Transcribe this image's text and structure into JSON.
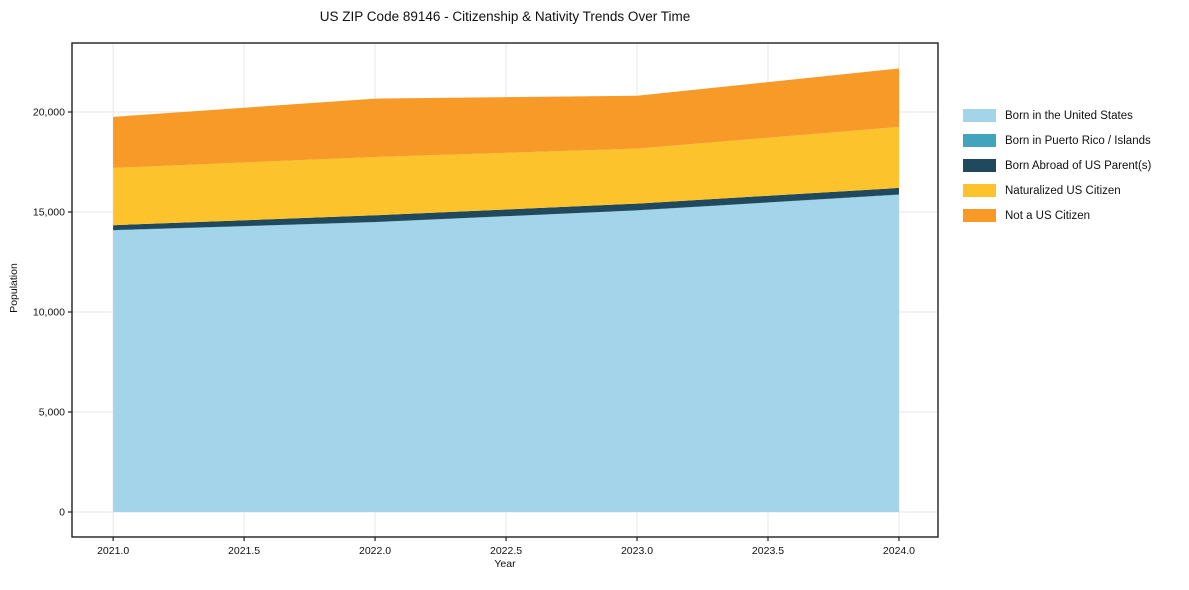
{
  "chart_data": {
    "type": "area",
    "stacked": true,
    "title": "US ZIP Code 89146 - Citizenship & Nativity Trends Over Time",
    "xlabel": "Year",
    "ylabel": "Population",
    "x": [
      2021,
      2022,
      2023,
      2024
    ],
    "series": [
      {
        "name": "Born in the United States",
        "color": "#a4d4e9",
        "values": [
          14080,
          14490,
          15075,
          15860
        ]
      },
      {
        "name": "Born in Puerto Rico / Islands",
        "color": "#42a3bd",
        "values": [
          15,
          10,
          10,
          15
        ]
      },
      {
        "name": "Born Abroad of US Parent(s)",
        "color": "#20495e",
        "values": [
          245,
          335,
          335,
          330
        ]
      },
      {
        "name": "Naturalized US Citizen",
        "color": "#fcc32d",
        "values": [
          2865,
          2915,
          2750,
          3050
        ]
      },
      {
        "name": "Not a US Citizen",
        "color": "#f79a28",
        "values": [
          2550,
          2920,
          2640,
          2920
        ]
      }
    ],
    "totals": [
      19755,
      20670,
      20810,
      22175
    ],
    "xlim": [
      2020.843,
      2024.149
    ],
    "ylim": [
      -1250,
      23450
    ],
    "xticks": {
      "values": [
        2021.0,
        2021.5,
        2022.0,
        2022.5,
        2023.0,
        2023.5,
        2024.0
      ],
      "labels": [
        "2021.0",
        "2021.5",
        "2022.0",
        "2022.5",
        "2023.0",
        "2023.5",
        "2024.0"
      ]
    },
    "yticks": {
      "values": [
        0,
        5000,
        10000,
        15000,
        20000
      ],
      "labels": [
        "0",
        "5,000",
        "10,000",
        "15,000",
        "20,000"
      ]
    },
    "grid": true,
    "legend_position": "right-outside",
    "colors": {
      "grid": "#e7e7e7",
      "spine": "#1f1f1f",
      "text": "#111111",
      "background": "#ffffff"
    }
  }
}
